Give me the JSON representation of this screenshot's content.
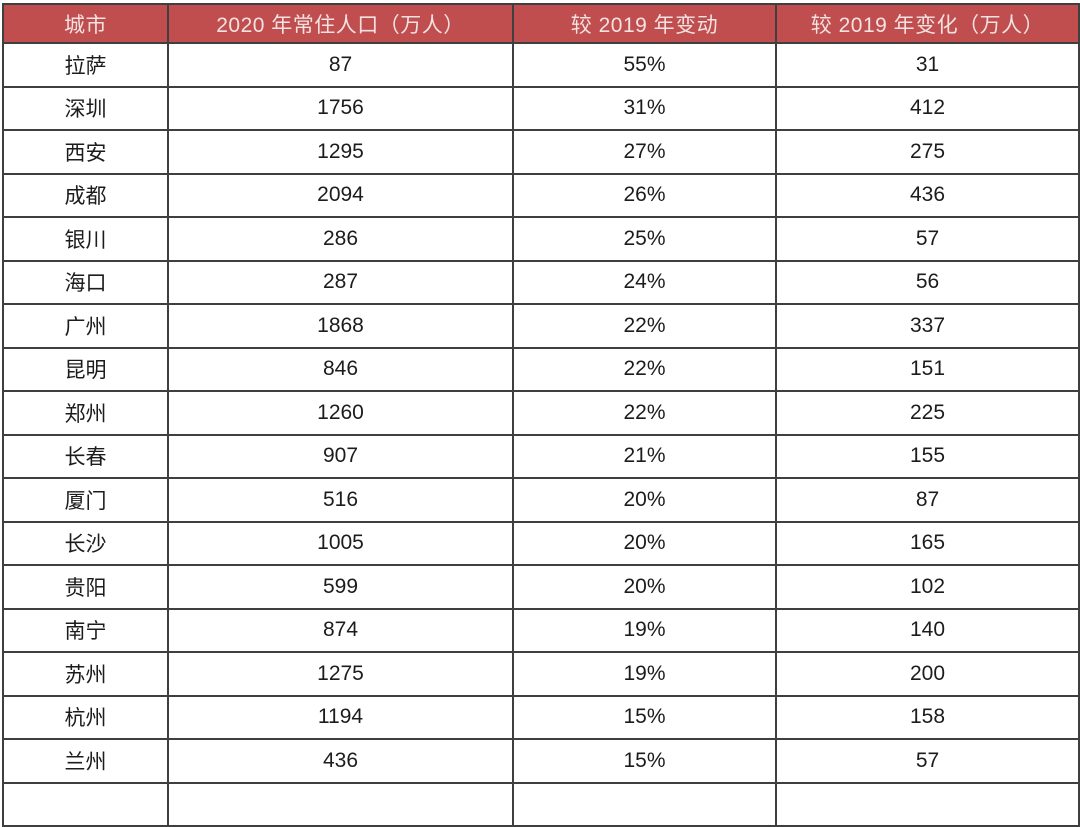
{
  "chart_data": {
    "type": "table",
    "columns": [
      "城市",
      "2020 年常住人口（万人）",
      "较 2019 年变动",
      "较 2019 年变化（万人）"
    ],
    "column_keys": [
      "city",
      "population_2020_wan",
      "change_vs_2019_pct",
      "change_vs_2019_wan"
    ],
    "rows": [
      [
        "拉萨",
        "87",
        "55%",
        "31"
      ],
      [
        "深圳",
        "1756",
        "31%",
        "412"
      ],
      [
        "西安",
        "1295",
        "27%",
        "275"
      ],
      [
        "成都",
        "2094",
        "26%",
        "436"
      ],
      [
        "银川",
        "286",
        "25%",
        "57"
      ],
      [
        "海口",
        "287",
        "24%",
        "56"
      ],
      [
        "广州",
        "1868",
        "22%",
        "337"
      ],
      [
        "昆明",
        "846",
        "22%",
        "151"
      ],
      [
        "郑州",
        "1260",
        "22%",
        "225"
      ],
      [
        "长春",
        "907",
        "21%",
        "155"
      ],
      [
        "厦门",
        "516",
        "20%",
        "87"
      ],
      [
        "长沙",
        "1005",
        "20%",
        "165"
      ],
      [
        "贵阳",
        "599",
        "20%",
        "102"
      ],
      [
        "南宁",
        "874",
        "19%",
        "140"
      ],
      [
        "苏州",
        "1275",
        "19%",
        "200"
      ],
      [
        "杭州",
        "1194",
        "15%",
        "158"
      ],
      [
        "兰州",
        "436",
        "15%",
        "57"
      ]
    ],
    "layout": {
      "grid": "on",
      "header_position": "top"
    },
    "colors": {
      "header_bg": "#C04E4E",
      "header_text": "#F3E2E2",
      "border": "#3F3F3F",
      "cell_text": "#1C1C1C",
      "row_bg": "#FFFFFF"
    }
  }
}
